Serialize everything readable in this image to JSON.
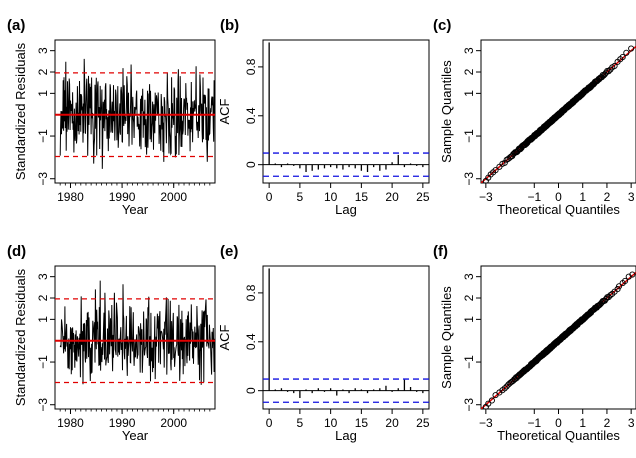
{
  "colors": {
    "series": "#000000",
    "fit_line": "#e00000",
    "band_red": "#e00000",
    "band_blue": "#1010e0",
    "points": "#000000",
    "background": "#ffffff"
  },
  "chart_data": [
    {
      "panel": "(a)",
      "type": "line",
      "xlabel": "Year",
      "ylabel": "Standardized Residuals",
      "xlim": [
        1977,
        2008
      ],
      "ylim": [
        -3.2,
        3.5
      ],
      "xticks": [
        1980,
        1990,
        2000
      ],
      "yticks": [
        -3,
        -1,
        1,
        2,
        3
      ],
      "grid": false,
      "reference_lines": [
        {
          "y": 0,
          "style": "solid",
          "color": "red"
        },
        {
          "y": 1.96,
          "style": "dashed",
          "color": "red"
        },
        {
          "y": -1.96,
          "style": "dashed",
          "color": "red"
        }
      ],
      "series_kind": "monthly standardized residuals, approx. 1978-2008"
    },
    {
      "panel": "(b)",
      "type": "bar",
      "xlabel": "Lag",
      "ylabel": "ACF",
      "xlim": [
        -1,
        26
      ],
      "ylim": [
        -0.15,
        1.02
      ],
      "xticks": [
        0,
        5,
        10,
        15,
        20,
        25
      ],
      "yticks": [
        0.0,
        0.4,
        0.8
      ],
      "grid": false,
      "confidence_band": [
        -0.095,
        0.095
      ],
      "lags": [
        0,
        1,
        2,
        3,
        4,
        5,
        6,
        7,
        8,
        9,
        10,
        11,
        12,
        13,
        14,
        15,
        16,
        17,
        18,
        19,
        20,
        21,
        22,
        23,
        24,
        25
      ],
      "acf": [
        1.0,
        0.01,
        -0.02,
        0.01,
        -0.01,
        -0.03,
        -0.06,
        -0.05,
        -0.04,
        -0.03,
        -0.02,
        -0.03,
        -0.04,
        -0.02,
        -0.03,
        -0.05,
        -0.06,
        -0.02,
        -0.05,
        -0.04,
        0.02,
        0.08,
        -0.02,
        0.01,
        -0.01,
        -0.02
      ]
    },
    {
      "panel": "(c)",
      "type": "scatter",
      "xlabel": "Theoretical Quantiles",
      "ylabel": "Sample Quantiles",
      "xlim": [
        -3.2,
        3.2
      ],
      "ylim": [
        -3.2,
        3.5
      ],
      "xticks": [
        -3,
        -1,
        0,
        1,
        2,
        3
      ],
      "yticks": [
        -3,
        -1,
        1,
        2,
        3
      ],
      "grid": false,
      "reference_line": {
        "slope": 1,
        "intercept": 0,
        "color": "red"
      },
      "tail_points": [
        [
          -3.0,
          -3.1
        ],
        [
          -2.9,
          -2.95
        ],
        [
          -2.8,
          -2.8
        ],
        [
          -2.7,
          -2.7
        ],
        [
          -2.6,
          -2.6
        ],
        [
          2.55,
          2.6
        ],
        [
          2.65,
          2.7
        ],
        [
          2.8,
          2.9
        ],
        [
          3.0,
          3.1
        ]
      ]
    },
    {
      "panel": "(d)",
      "type": "line",
      "xlabel": "Year",
      "ylabel": "Standardized Residuals",
      "xlim": [
        1977,
        2008
      ],
      "ylim": [
        -3.2,
        3.5
      ],
      "xticks": [
        1980,
        1990,
        2000
      ],
      "yticks": [
        -3,
        -1,
        1,
        2,
        3
      ],
      "grid": false,
      "reference_lines": [
        {
          "y": 0,
          "style": "solid",
          "color": "red"
        },
        {
          "y": 1.96,
          "style": "dashed",
          "color": "red"
        },
        {
          "y": -1.96,
          "style": "dashed",
          "color": "red"
        }
      ],
      "series_kind": "monthly standardized residuals, approx. 1978-2008"
    },
    {
      "panel": "(e)",
      "type": "bar",
      "xlabel": "Lag",
      "ylabel": "ACF",
      "xlim": [
        -1,
        26
      ],
      "ylim": [
        -0.15,
        1.02
      ],
      "xticks": [
        0,
        5,
        10,
        15,
        20,
        25
      ],
      "yticks": [
        0.0,
        0.4,
        0.8
      ],
      "grid": false,
      "confidence_band": [
        -0.095,
        0.095
      ],
      "lags": [
        0,
        1,
        2,
        3,
        4,
        5,
        6,
        7,
        8,
        9,
        10,
        11,
        12,
        13,
        14,
        15,
        16,
        17,
        18,
        19,
        20,
        21,
        22,
        23,
        24,
        25
      ],
      "acf": [
        1.0,
        0.01,
        0.02,
        -0.01,
        -0.02,
        -0.06,
        0.01,
        -0.02,
        0.02,
        -0.01,
        0.02,
        -0.04,
        0.01,
        -0.02,
        0.02,
        0.01,
        -0.02,
        0.01,
        0.02,
        0.04,
        -0.01,
        0.02,
        0.09,
        0.03,
        -0.01,
        -0.02
      ]
    },
    {
      "panel": "(f)",
      "type": "scatter",
      "xlabel": "Theoretical Quantiles",
      "ylabel": "Sample Quantiles",
      "xlim": [
        -3.2,
        3.2
      ],
      "ylim": [
        -3.2,
        3.5
      ],
      "xticks": [
        -3,
        -1,
        0,
        1,
        2,
        3
      ],
      "yticks": [
        -3,
        -1,
        1,
        2,
        3
      ],
      "grid": false,
      "reference_line": {
        "slope": 1,
        "intercept": 0,
        "color": "red"
      },
      "tail_points": [
        [
          -3.0,
          -3.1
        ],
        [
          -2.9,
          -2.95
        ],
        [
          -2.75,
          -2.8
        ],
        [
          -2.6,
          -2.55
        ],
        [
          2.5,
          2.55
        ],
        [
          2.65,
          2.7
        ],
        [
          2.75,
          2.8
        ],
        [
          2.9,
          3.0
        ],
        [
          3.05,
          3.1
        ]
      ]
    }
  ]
}
